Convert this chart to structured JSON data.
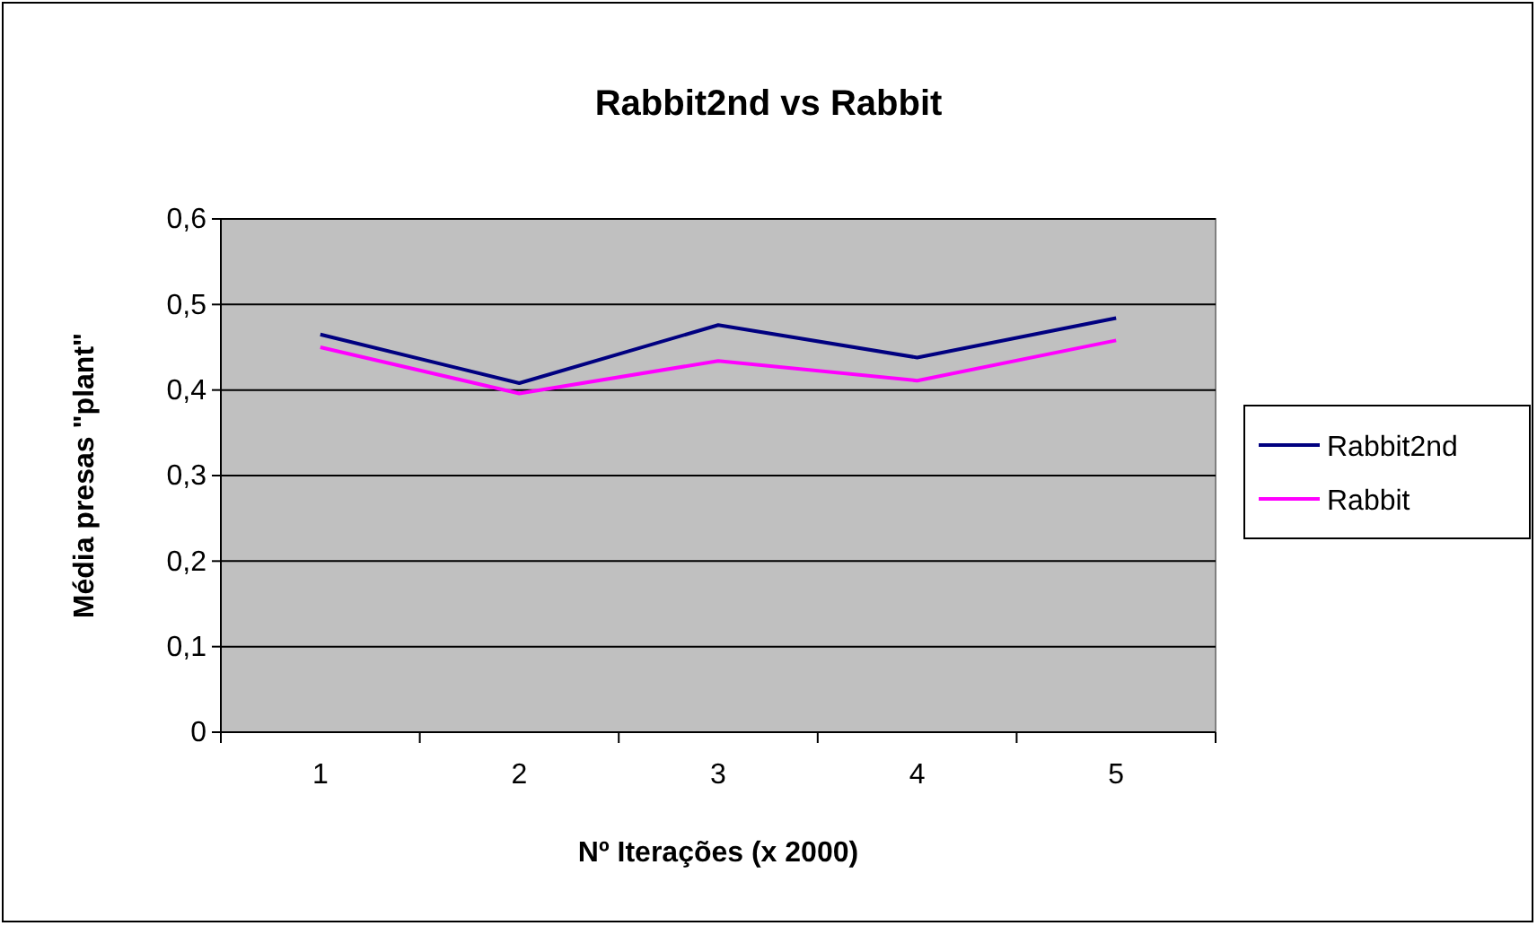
{
  "chart_data": {
    "type": "line",
    "title": "Rabbit2nd vs Rabbit",
    "xlabel": "Nº Iterações (x 2000)",
    "ylabel": "Média presas \"plant\"",
    "categories": [
      "1",
      "2",
      "3",
      "4",
      "5"
    ],
    "series": [
      {
        "name": "Rabbit2nd",
        "color": "#000080",
        "values": [
          0.465,
          0.408,
          0.476,
          0.438,
          0.484
        ]
      },
      {
        "name": "Rabbit",
        "color": "#ff00ff",
        "values": [
          0.45,
          0.396,
          0.434,
          0.411,
          0.458
        ]
      }
    ],
    "ylim": [
      0,
      0.6
    ],
    "yticks": [
      {
        "value": 0,
        "label": "0"
      },
      {
        "value": 0.1,
        "label": "0,1"
      },
      {
        "value": 0.2,
        "label": "0,2"
      },
      {
        "value": 0.3,
        "label": "0,3"
      },
      {
        "value": 0.4,
        "label": "0,4"
      },
      {
        "value": 0.5,
        "label": "0,5"
      },
      {
        "value": 0.6,
        "label": "0,6"
      }
    ],
    "grid": "y",
    "legend": "right",
    "marker": "none",
    "line_style": "solid"
  }
}
